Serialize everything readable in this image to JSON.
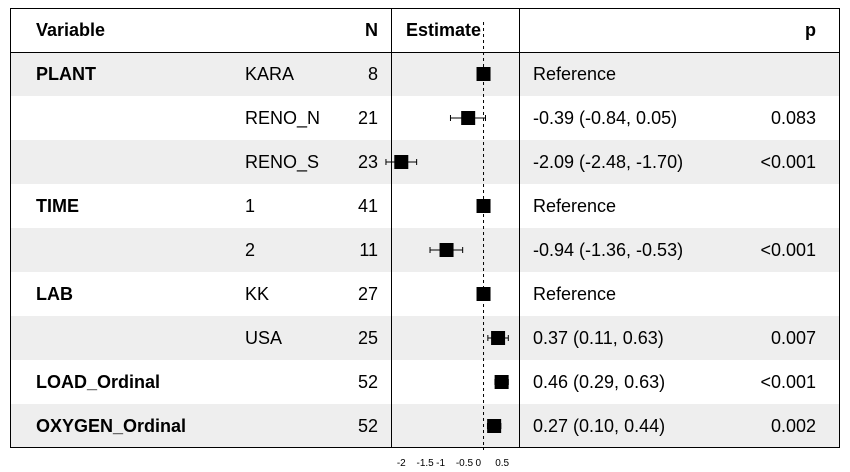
{
  "chart_data": {
    "type": "forest",
    "headers": {
      "variable": "Variable",
      "n": "N",
      "estimate": "Estimate",
      "p": "p"
    },
    "reference_line": 0,
    "x_ticks": [
      "-2",
      "-1.5",
      "-1",
      "-0.5",
      "0",
      "0.5"
    ],
    "x_range": [
      -2.25,
      0.8
    ],
    "rows": [
      {
        "variable": "PLANT",
        "level": "KARA",
        "n": "8",
        "estimate": 0,
        "lo": 0,
        "hi": 0,
        "ci_text": "Reference",
        "p": ""
      },
      {
        "variable": "",
        "level": "RENO_N",
        "n": "21",
        "estimate": -0.39,
        "lo": -0.84,
        "hi": 0.05,
        "ci_text": "-0.39 (-0.84, 0.05)",
        "p": "0.083"
      },
      {
        "variable": "",
        "level": "RENO_S",
        "n": "23",
        "estimate": -2.09,
        "lo": -2.48,
        "hi": -1.7,
        "ci_text": "-2.09 (-2.48, -1.70)",
        "p": "<0.001"
      },
      {
        "variable": "TIME",
        "level": "1",
        "n": "41",
        "estimate": 0,
        "lo": 0,
        "hi": 0,
        "ci_text": "Reference",
        "p": ""
      },
      {
        "variable": "",
        "level": "2",
        "n": "11",
        "estimate": -0.94,
        "lo": -1.36,
        "hi": -0.53,
        "ci_text": "-0.94 (-1.36, -0.53)",
        "p": "<0.001"
      },
      {
        "variable": "LAB",
        "level": "KK",
        "n": "27",
        "estimate": 0,
        "lo": 0,
        "hi": 0,
        "ci_text": "Reference",
        "p": ""
      },
      {
        "variable": "",
        "level": "USA",
        "n": "25",
        "estimate": 0.37,
        "lo": 0.11,
        "hi": 0.63,
        "ci_text": "0.37 (0.11, 0.63)",
        "p": "0.007"
      },
      {
        "variable": "LOAD_Ordinal",
        "level": "",
        "n": "52",
        "estimate": 0.46,
        "lo": 0.29,
        "hi": 0.63,
        "ci_text": "0.46 (0.29, 0.63)",
        "p": "<0.001"
      },
      {
        "variable": "OXYGEN_Ordinal",
        "level": "",
        "n": "52",
        "estimate": 0.27,
        "lo": 0.1,
        "hi": 0.44,
        "ci_text": "0.27 (0.10, 0.44)",
        "p": "0.002"
      }
    ]
  }
}
